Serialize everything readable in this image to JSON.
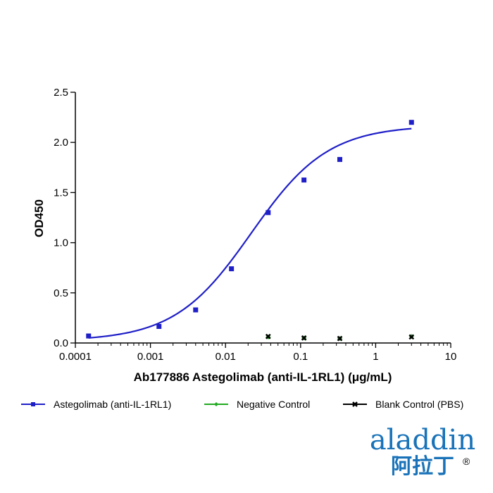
{
  "chart_data": {
    "type": "scatter",
    "xlabel": "Ab177886 Astegolimab (anti-IL-1RL1) (μg/mL)",
    "ylabel": "OD450",
    "x_scale": "log",
    "xlim": [
      0.0001,
      10
    ],
    "ylim": [
      0,
      2.5
    ],
    "x_ticks": [
      0.0001,
      0.001,
      0.01,
      0.1,
      1,
      10
    ],
    "x_tick_labels": [
      "0.0001",
      "0.001",
      "0.01",
      "0.1",
      "1",
      "10"
    ],
    "y_ticks": [
      0,
      0.5,
      1,
      1.5,
      2,
      2.5
    ],
    "y_tick_labels": [
      "0.0",
      "0.5",
      "1.0",
      "1.5",
      "2.0",
      "2.5"
    ],
    "grid": false,
    "legend_position": "bottom",
    "series": [
      {
        "name": "Astegolimab (anti-IL-1RL1)",
        "color": "#1f1fc8",
        "marker": "square",
        "fit_curve": "4PL",
        "x": [
          0.00015,
          0.0013,
          0.004,
          0.012,
          0.037,
          0.111,
          0.333,
          3.0
        ],
        "y": [
          0.07,
          0.165,
          0.33,
          0.74,
          1.3,
          1.625,
          1.83,
          2.2
        ]
      },
      {
        "name": "Negative Control",
        "color": "#22aa22",
        "marker": "diamond",
        "x": [
          0.037,
          0.111,
          0.333,
          3.0
        ],
        "y": [
          0.06,
          0.05,
          0.045,
          0.065
        ]
      },
      {
        "name": "Blank Control (PBS)",
        "color": "#000000",
        "marker": "x",
        "x": [
          0.037,
          0.111,
          0.333,
          3.0
        ],
        "y": [
          0.065,
          0.05,
          0.045,
          0.06
        ]
      }
    ],
    "fit": {
      "bottom": 0.02,
      "top": 2.17,
      "ec50": 0.022,
      "hill": 0.85
    }
  },
  "logo": {
    "latin": "aladdin",
    "cjk": "阿拉丁",
    "registered": "®",
    "color": "#1a73b9"
  }
}
